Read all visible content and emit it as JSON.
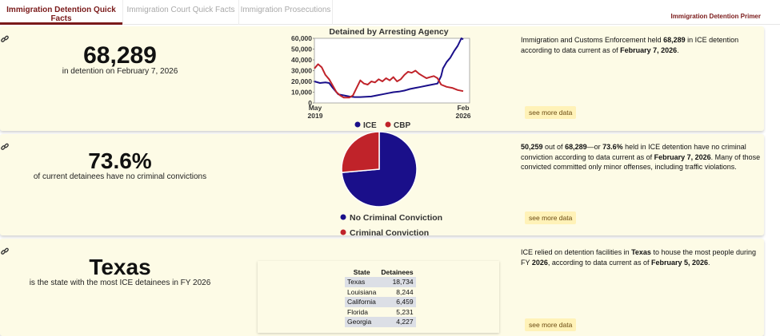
{
  "nav": {
    "tabs": [
      {
        "label": "Immigration Detention Quick Facts"
      },
      {
        "label": "Immigration Court Quick Facts"
      },
      {
        "label": "Immigration Prosecutions"
      }
    ],
    "primer": "Immigration Detention Primer"
  },
  "card1": {
    "big": "68,289",
    "sub": "in detention on February 7, 2026",
    "desc_1": "Immigration and Customs Enforcement held ",
    "desc_2": "68,289",
    "desc_3": " in ICE detention according to data current as of ",
    "desc_4": "February 7, 2026",
    "desc_5": ".",
    "more": "see more data"
  },
  "card2": {
    "big": "73.6%",
    "sub": "of current detainees have no criminal convictions",
    "desc_1": "50,259",
    "desc_2": " out of ",
    "desc_3": "68,289",
    "desc_4": "—or ",
    "desc_5": "73.6%",
    "desc_6": " held in ICE detention have no criminal conviction according to data current as of ",
    "desc_7": "February 7, 2026",
    "desc_8": ". Many of those convicted committed only minor offenses, including traffic violations.",
    "more": "see more data"
  },
  "card3": {
    "big": "Texas",
    "sub": "is the state with the most ICE detainees in FY 2026",
    "desc_1": "ICE relied on detention facilities in ",
    "desc_2": "Texas",
    "desc_3": " to house the most people during FY ",
    "desc_4": "2026",
    "desc_5": ", according to data current as of ",
    "desc_6": "February 5, 2026",
    "desc_7": ".",
    "more": "see more data"
  },
  "chart_data": [
    {
      "type": "line",
      "title": "Detained by Arresting Agency",
      "x_start_label": "May\n2019",
      "x_end_label": "Feb\n2026",
      "x_range": [
        "2019-05",
        "2026-02"
      ],
      "y_ticks": [
        "0",
        "10,000",
        "20,000",
        "30,000",
        "40,000",
        "50,000",
        "60,000"
      ],
      "ylim": [
        0,
        60000
      ],
      "legend": "bottom",
      "series": [
        {
          "name": "ICE",
          "color": "#1a0f8a",
          "points": [
            [
              "2019-05",
              20000
            ],
            [
              "2019-08",
              18500
            ],
            [
              "2019-11",
              19000
            ],
            [
              "2020-01",
              18500
            ],
            [
              "2020-03",
              14000
            ],
            [
              "2020-06",
              8000
            ],
            [
              "2020-09",
              7000
            ],
            [
              "2020-12",
              6000
            ],
            [
              "2021-03",
              5500
            ],
            [
              "2021-06",
              5500
            ],
            [
              "2021-09",
              5800
            ],
            [
              "2021-12",
              6000
            ],
            [
              "2022-03",
              7000
            ],
            [
              "2022-06",
              8000
            ],
            [
              "2022-09",
              9000
            ],
            [
              "2022-12",
              10000
            ],
            [
              "2023-03",
              10500
            ],
            [
              "2023-06",
              11500
            ],
            [
              "2023-09",
              13000
            ],
            [
              "2023-12",
              14000
            ],
            [
              "2024-03",
              15000
            ],
            [
              "2024-06",
              16000
            ],
            [
              "2024-09",
              17000
            ],
            [
              "2024-12",
              18000
            ],
            [
              "2025-02",
              25000
            ],
            [
              "2025-03",
              32000
            ],
            [
              "2025-05",
              38000
            ],
            [
              "2025-07",
              42000
            ],
            [
              "2025-09",
              48000
            ],
            [
              "2025-11",
              53000
            ],
            [
              "2026-01",
              60000
            ],
            [
              "2026-02",
              59000
            ]
          ]
        },
        {
          "name": "CBP",
          "color": "#c0232a",
          "points": [
            [
              "2019-05",
              32000
            ],
            [
              "2019-07",
              36000
            ],
            [
              "2019-09",
              33000
            ],
            [
              "2019-11",
              26000
            ],
            [
              "2020-01",
              22000
            ],
            [
              "2020-03",
              16000
            ],
            [
              "2020-05",
              10000
            ],
            [
              "2020-07",
              7000
            ],
            [
              "2020-09",
              5000
            ],
            [
              "2020-12",
              5000
            ],
            [
              "2021-02",
              7000
            ],
            [
              "2021-04",
              14000
            ],
            [
              "2021-06",
              21000
            ],
            [
              "2021-08",
              18000
            ],
            [
              "2021-10",
              17000
            ],
            [
              "2021-12",
              20000
            ],
            [
              "2022-02",
              19000
            ],
            [
              "2022-04",
              22000
            ],
            [
              "2022-06",
              20000
            ],
            [
              "2022-08",
              23000
            ],
            [
              "2022-10",
              21000
            ],
            [
              "2022-12",
              24000
            ],
            [
              "2023-02",
              20000
            ],
            [
              "2023-04",
              22000
            ],
            [
              "2023-06",
              26000
            ],
            [
              "2023-08",
              29000
            ],
            [
              "2023-10",
              28000
            ],
            [
              "2023-12",
              30000
            ],
            [
              "2024-02",
              27000
            ],
            [
              "2024-04",
              25000
            ],
            [
              "2024-06",
              23000
            ],
            [
              "2024-08",
              24000
            ],
            [
              "2024-10",
              25000
            ],
            [
              "2024-12",
              23000
            ],
            [
              "2025-02",
              17000
            ],
            [
              "2025-05",
              15000
            ],
            [
              "2025-08",
              14000
            ],
            [
              "2025-11",
              12000
            ],
            [
              "2026-02",
              11000
            ]
          ]
        }
      ]
    },
    {
      "type": "pie",
      "slices": [
        {
          "name": "No Criminal Conviction",
          "value": 73.6,
          "color": "#1a0f8a"
        },
        {
          "name": "Criminal Conviction",
          "value": 26.4,
          "color": "#c0232a"
        }
      ],
      "legend": "bottom"
    },
    {
      "type": "table",
      "columns": [
        "State",
        "Detainees"
      ],
      "rows": [
        [
          "Texas",
          "18,734"
        ],
        [
          "Louisiana",
          "8,244"
        ],
        [
          "California",
          "6,459"
        ],
        [
          "Florida",
          "5,231"
        ],
        [
          "Georgia",
          "4,227"
        ]
      ]
    }
  ],
  "icons": {
    "link": "link-icon"
  }
}
